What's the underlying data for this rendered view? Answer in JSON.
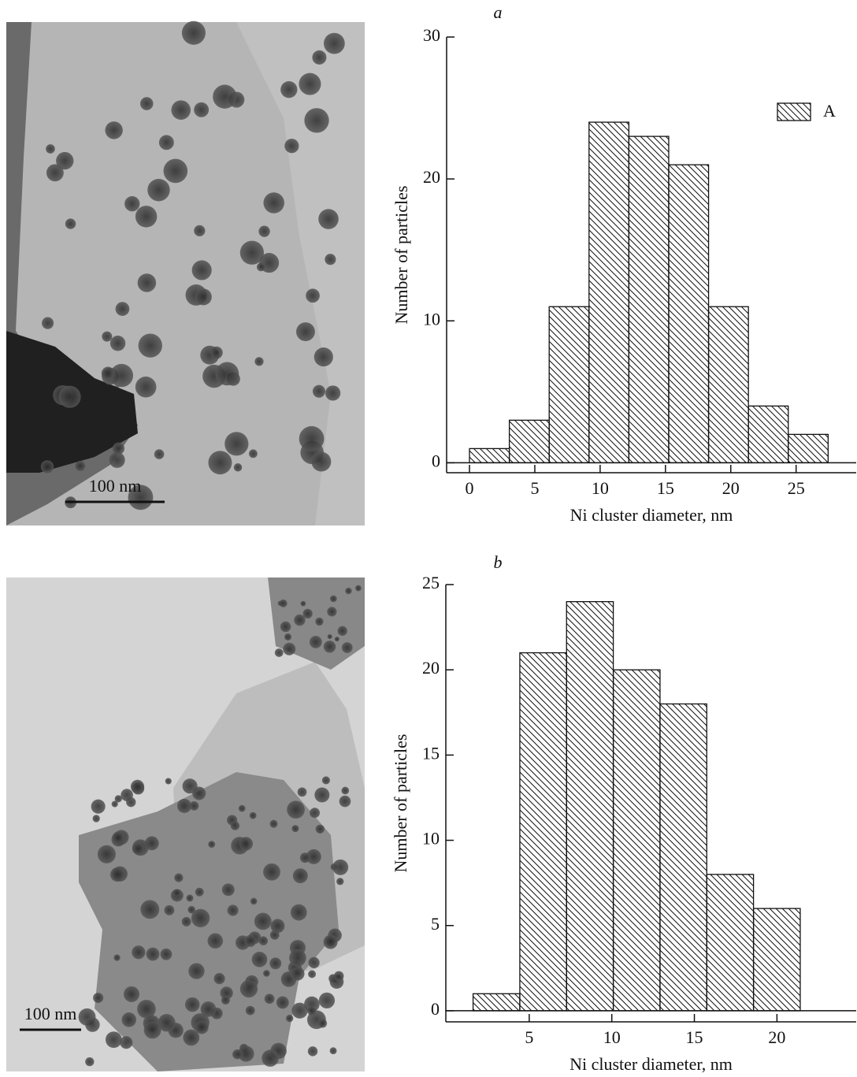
{
  "chart_data": [
    {
      "type": "histogram",
      "title": "a",
      "xlabel": "Ni cluster diameter, nm",
      "ylabel": "Number of particles",
      "scale_bar": "100 nm",
      "bins": [
        0,
        3.05,
        6.1,
        9.15,
        12.2,
        15.25,
        18.3,
        21.35,
        24.4,
        27.45
      ],
      "series": [
        {
          "name": "A",
          "values": [
            1,
            3,
            11,
            24,
            23,
            21,
            11,
            4,
            2
          ]
        }
      ],
      "xlim": [
        -1.75,
        29.6
      ],
      "ylim": [
        -0.7,
        30
      ],
      "xticks": [
        0,
        5,
        10,
        15,
        20,
        25
      ],
      "yticks": [
        0,
        10,
        20,
        30
      ],
      "legend": "upper right"
    },
    {
      "type": "histogram",
      "title": "b",
      "xlabel": "Ni cluster diameter, nm",
      "ylabel": "Number of particles",
      "scale_bar": "100 nm",
      "bins": [
        1.6,
        4.43,
        7.26,
        10.09,
        12.92,
        15.75,
        18.58,
        21.41
      ],
      "values": [
        1,
        21,
        24,
        20,
        18,
        8,
        6
      ],
      "xlim": [
        -0.05,
        24.8
      ],
      "ylim": [
        -0.65,
        25
      ],
      "xticks": [
        5,
        10,
        15,
        20
      ],
      "yticks": [
        0,
        5,
        10,
        15,
        20,
        25
      ]
    }
  ]
}
